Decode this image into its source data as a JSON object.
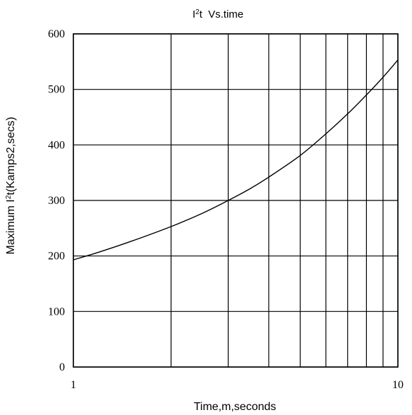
{
  "chart_data": {
    "type": "line",
    "title": {
      "base": "I",
      "sup": "2",
      "rest": "t  Vs.time"
    },
    "xlabel": "Time,m,seconds",
    "ylabel": {
      "base": "Maximum I",
      "sup": "2",
      "rest": "t(Kamps2,secs)"
    },
    "x_scale": "log",
    "xlim": [
      1,
      10
    ],
    "ylim": [
      0,
      600
    ],
    "x_ticks": [
      1,
      2,
      3,
      4,
      5,
      6,
      7,
      8,
      9,
      10
    ],
    "x_tick_labels": [
      "1",
      "10"
    ],
    "y_ticks": [
      0,
      100,
      200,
      300,
      400,
      500,
      600
    ],
    "y_tick_labels": [
      "0",
      "100",
      "200",
      "300",
      "400",
      "500",
      "600"
    ],
    "grid": true,
    "series": [
      {
        "x": [
          1.0,
          1.2,
          1.5,
          2.0,
          2.5,
          3.0,
          3.5,
          4.0,
          5.0,
          6.0,
          7.0,
          8.0,
          9.0,
          10.0
        ],
        "y": [
          193,
          207,
          226,
          253,
          277,
          300,
          321,
          342,
          381,
          420,
          456,
          490,
          522,
          553
        ]
      }
    ],
    "colors": {
      "line": "#000000",
      "grid": "#000000"
    }
  }
}
